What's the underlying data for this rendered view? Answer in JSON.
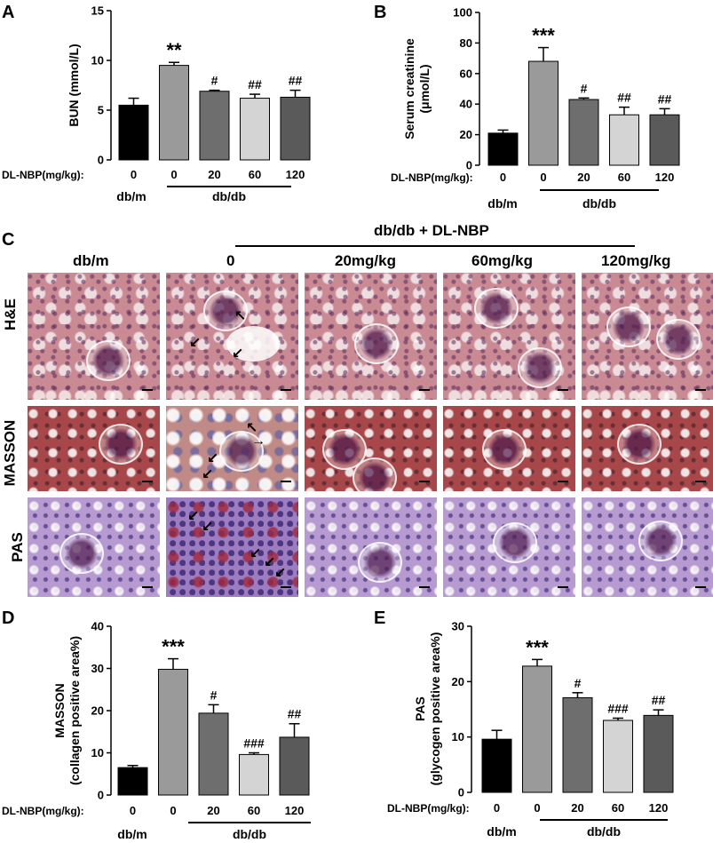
{
  "panel_letters": {
    "a": "A",
    "b": "B",
    "c": "C",
    "d": "D",
    "e": "E"
  },
  "dose_label": "DL-NBP(mg/kg):",
  "doses": [
    "0",
    "0",
    "20",
    "60",
    "120"
  ],
  "group_dbm": "db/m",
  "group_dbdb": "db/db",
  "bar_colors": [
    "#000000",
    "#9a9a9a",
    "#6e6e6e",
    "#d4d4d4",
    "#5a5a5a"
  ],
  "chart_data": [
    {
      "type": "bar",
      "panel": "A",
      "ylabel": "BUN (mmol/L)",
      "ylim": [
        0,
        15
      ],
      "yticks": [
        0,
        5,
        10,
        15
      ],
      "categories": [
        "0",
        "0",
        "20",
        "60",
        "120"
      ],
      "values": [
        5.5,
        9.5,
        6.9,
        6.2,
        6.3
      ],
      "errors": [
        0.7,
        0.3,
        0.1,
        0.4,
        0.7
      ],
      "annotations": [
        "",
        "**",
        "#",
        "##",
        "##"
      ]
    },
    {
      "type": "bar",
      "panel": "B",
      "ylabel": [
        "Serum creatinine",
        "(μmol/L)"
      ],
      "ylim": [
        0,
        100
      ],
      "yticks": [
        0,
        20,
        40,
        60,
        80,
        100
      ],
      "categories": [
        "0",
        "0",
        "20",
        "60",
        "120"
      ],
      "values": [
        21,
        68,
        43,
        33,
        33
      ],
      "errors": [
        2,
        9,
        1,
        5,
        4
      ],
      "annotations": [
        "",
        "***",
        "#",
        "##",
        "##"
      ]
    },
    {
      "type": "bar",
      "panel": "D",
      "ylabel": [
        "MASSON",
        "(collagen positive area%)"
      ],
      "ylim": [
        0,
        40
      ],
      "yticks": [
        0,
        10,
        20,
        30,
        40
      ],
      "categories": [
        "0",
        "0",
        "20",
        "60",
        "120"
      ],
      "values": [
        6.5,
        29.8,
        19.4,
        9.6,
        13.7
      ],
      "errors": [
        0.5,
        2.5,
        2.0,
        0.4,
        3.2
      ],
      "annotations": [
        "",
        "***",
        "#",
        "###",
        "##"
      ]
    },
    {
      "type": "bar",
      "panel": "E",
      "ylabel": [
        "PAS",
        "(glycogen positive area%)"
      ],
      "ylim": [
        0,
        30
      ],
      "yticks": [
        0,
        10,
        20,
        30
      ],
      "categories": [
        "0",
        "0",
        "20",
        "60",
        "120"
      ],
      "values": [
        9.6,
        22.8,
        17.1,
        13.0,
        13.9
      ],
      "errors": [
        1.6,
        1.2,
        0.9,
        0.4,
        1.0
      ],
      "annotations": [
        "",
        "***",
        "#",
        "###",
        "##"
      ]
    }
  ],
  "micrographs": {
    "treatment_header": "db/db + DL-NBP",
    "columns": [
      "db/m",
      "0",
      "20mg/kg",
      "60mg/kg",
      "120mg/kg"
    ],
    "rows": [
      "H&E",
      "MASSON",
      "PAS"
    ]
  }
}
